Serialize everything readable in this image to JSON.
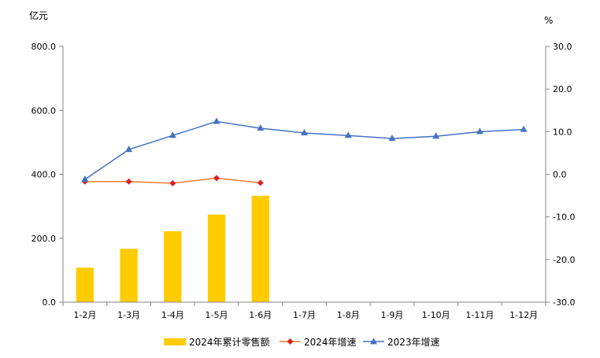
{
  "chart_data": {
    "type": "bar+line",
    "categories": [
      "1-2月",
      "1-3月",
      "1-4月",
      "1-5月",
      "1-6月",
      "1-7月",
      "1-8月",
      "1-9月",
      "1-10月",
      "1-11月",
      "1-12月"
    ],
    "left_axis": {
      "unit": "亿元",
      "range": [
        0,
        800
      ],
      "ticks": [
        0,
        200,
        400,
        600,
        800
      ],
      "tick_labels": [
        "0.0",
        "200.0",
        "400.0",
        "600.0",
        "800.0"
      ]
    },
    "right_axis": {
      "unit": "%",
      "range": [
        -30,
        30
      ],
      "ticks": [
        -30,
        -20,
        -10,
        0,
        10,
        20,
        30
      ],
      "tick_labels": [
        "-30.0",
        "-20.0",
        "-10.0",
        "0.0",
        "10.0",
        "20.0",
        "30.0"
      ]
    },
    "series": [
      {
        "name": "2024年累计零售额",
        "type": "bar",
        "axis": "left",
        "color": "#FFCC00",
        "values": [
          108,
          167,
          222,
          274,
          333,
          null,
          null,
          null,
          null,
          null,
          null
        ]
      },
      {
        "name": "2024年增速",
        "type": "line",
        "axis": "right",
        "color": "#ED7D31",
        "marker": "diamond",
        "marker_color": "#E02020",
        "values": [
          -1.7,
          -1.7,
          -2.1,
          -0.9,
          -2.0,
          null,
          null,
          null,
          null,
          null,
          null
        ]
      },
      {
        "name": "2023年增速",
        "type": "line",
        "axis": "right",
        "color": "#4472C4",
        "marker": "triangle",
        "marker_color": "#4472C4",
        "values": [
          -1.2,
          5.8,
          9.1,
          12.4,
          10.8,
          9.7,
          9.1,
          8.4,
          8.9,
          10.0,
          10.5
        ]
      }
    ],
    "legend_position": "bottom",
    "grid": false
  }
}
